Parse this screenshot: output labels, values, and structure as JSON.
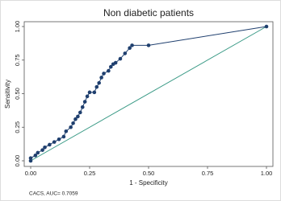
{
  "chart_data": {
    "type": "line",
    "title": "Non diabetic patients",
    "x_label": "1 - Specificity",
    "y_label": "Sensitivity",
    "note": "CACS, AUC= 0.7059",
    "xlim": [
      0,
      1
    ],
    "ylim": [
      0,
      1
    ],
    "xticks": [
      {
        "value": 0,
        "label": "0.00"
      },
      {
        "value": 0.25,
        "label": "0.25"
      },
      {
        "value": 0.5,
        "label": "0.50"
      },
      {
        "value": 0.75,
        "label": "0.75"
      },
      {
        "value": 1,
        "label": "1.00"
      }
    ],
    "yticks": [
      {
        "value": 0,
        "label": "0.00"
      },
      {
        "value": 0.25,
        "label": "0.25"
      },
      {
        "value": 0.5,
        "label": "0.50"
      },
      {
        "value": 0.75,
        "label": "0.75"
      },
      {
        "value": 1,
        "label": "1.00"
      }
    ],
    "series": [
      {
        "color": "#1f3f6e",
        "markers": true,
        "x": [
          0,
          0,
          0.02,
          0.03,
          0.05,
          0.06,
          0.08,
          0.1,
          0.12,
          0.14,
          0.15,
          0.17,
          0.18,
          0.19,
          0.2,
          0.21,
          0.22,
          0.23,
          0.24,
          0.25,
          0.27,
          0.28,
          0.29,
          0.3,
          0.31,
          0.33,
          0.34,
          0.35,
          0.36,
          0.38,
          0.4,
          0.42,
          0.43,
          0.5,
          1.0
        ],
        "values": [
          0,
          0.02,
          0.04,
          0.06,
          0.08,
          0.1,
          0.12,
          0.14,
          0.16,
          0.18,
          0.22,
          0.25,
          0.28,
          0.31,
          0.33,
          0.36,
          0.4,
          0.44,
          0.48,
          0.51,
          0.51,
          0.55,
          0.58,
          0.62,
          0.65,
          0.67,
          0.7,
          0.72,
          0.73,
          0.76,
          0.8,
          0.84,
          0.86,
          0.86,
          1.0
        ]
      },
      {
        "color": "#3a9a86",
        "markers": false,
        "x": [
          0,
          1
        ],
        "values": [
          0,
          1
        ]
      }
    ]
  }
}
